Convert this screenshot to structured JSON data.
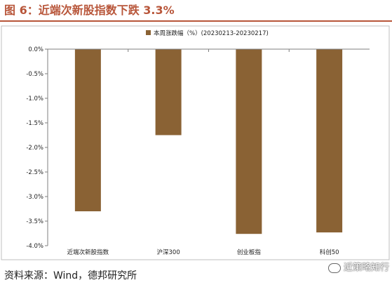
{
  "figure_title": "图 6：近端次新股指数下跌 3.3%",
  "source": "资料来源：Wind，德邦研究所",
  "watermark": "近策略知行",
  "colors": {
    "bar": "#8a6234",
    "title": "#b8563a",
    "axis": "#7f7f7f"
  },
  "chart_data": {
    "type": "bar",
    "legend": "本周涨跌幅（%）(20230213-20230217)",
    "legend_position": "top-center",
    "categories": [
      "近端次新股指数",
      "沪深300",
      "创业板指",
      "科创50"
    ],
    "series": [
      {
        "name": "本周涨跌幅（%）(20230213-20230217)",
        "values": [
          -3.3,
          -1.75,
          -3.76,
          -3.73
        ]
      }
    ],
    "ylim": [
      -4.0,
      0.0
    ],
    "yticks": [
      0.0,
      -0.5,
      -1.0,
      -1.5,
      -2.0,
      -2.5,
      -3.0,
      -3.5,
      -4.0
    ],
    "ytick_labels": [
      "0.0%",
      "-0.5%",
      "-1.0%",
      "-1.5%",
      "-2.0%",
      "-2.5%",
      "-3.0%",
      "-3.5%",
      "-4.0%"
    ],
    "grid": false,
    "xlabel": "",
    "ylabel": ""
  }
}
